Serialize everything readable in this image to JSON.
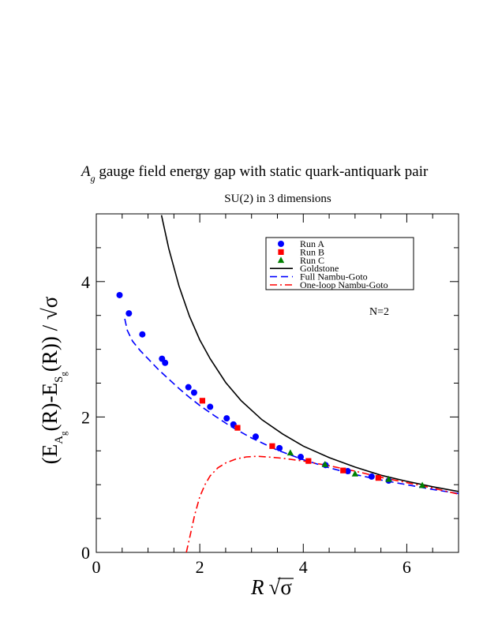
{
  "chart_data": {
    "type": "scatter",
    "title": {
      "prefix": "A",
      "sub": "g",
      "rest": " gauge field energy gap with static quark-antiquark pair"
    },
    "subtitle": "SU(2) in 3 dimensions",
    "xlabel": {
      "main": "R",
      "sqrt": "σ"
    },
    "ylabel": {
      "open": "(E",
      "sub1": "A",
      "sub1s": "g",
      "mid": "(R)-E",
      "sub2": "S",
      "sub2s": "g",
      "end": "(R)) / ",
      "sqrt": "σ"
    },
    "xlim": [
      0,
      7
    ],
    "ylim": [
      0,
      5
    ],
    "x_ticks": [
      "0",
      "2",
      "4",
      "6"
    ],
    "y_ticks": [
      "0",
      "2",
      "4"
    ],
    "annotation": "N=2",
    "legend_position": "top-right",
    "grid": false,
    "series": [
      {
        "name": "Run A",
        "kind": "points",
        "marker": "circle",
        "color": "#0000ff",
        "x": [
          0.45,
          0.63,
          0.89,
          1.27,
          1.33,
          1.78,
          1.89,
          2.2,
          2.52,
          2.65,
          3.08,
          3.54,
          3.95,
          4.43,
          4.86,
          5.32,
          5.65
        ],
        "y": [
          3.8,
          3.53,
          3.22,
          2.86,
          2.8,
          2.44,
          2.36,
          2.15,
          1.98,
          1.89,
          1.71,
          1.54,
          1.41,
          1.29,
          1.2,
          1.12,
          1.06
        ]
      },
      {
        "name": "Run B",
        "kind": "points",
        "marker": "square",
        "color": "#ff0000",
        "x": [
          2.05,
          2.73,
          3.4,
          4.1,
          4.77,
          5.45
        ],
        "y": [
          2.24,
          1.84,
          1.57,
          1.35,
          1.21,
          1.1
        ]
      },
      {
        "name": "Run C",
        "kind": "points",
        "marker": "triangle",
        "color": "#008000",
        "x": [
          3.75,
          4.42,
          5.0,
          5.65,
          6.3
        ],
        "y": [
          1.47,
          1.3,
          1.16,
          1.08,
          0.99
        ]
      },
      {
        "name": "Goldstone",
        "kind": "line",
        "style": "solid",
        "color": "#000000",
        "x": [
          1.26,
          1.4,
          1.6,
          1.8,
          2.0,
          2.2,
          2.5,
          2.8,
          3.2,
          3.6,
          4.0,
          4.5,
          5.0,
          5.5,
          6.0,
          6.5,
          7.0
        ],
        "y": [
          4.98,
          4.49,
          3.93,
          3.49,
          3.14,
          2.86,
          2.51,
          2.24,
          1.96,
          1.75,
          1.57,
          1.4,
          1.26,
          1.14,
          1.05,
          0.97,
          0.9
        ]
      },
      {
        "name": "Full Nambu-Goto",
        "kind": "line",
        "style": "dashed",
        "color": "#0000ff",
        "x": [
          0.55,
          0.6,
          0.7,
          0.85,
          1.0,
          1.2,
          1.4,
          1.6,
          1.8,
          2.0,
          2.3,
          2.6,
          3.0,
          3.5,
          4.0,
          4.5,
          5.0,
          5.5,
          6.0,
          6.5,
          7.0
        ],
        "y": [
          3.45,
          3.28,
          3.12,
          2.98,
          2.86,
          2.7,
          2.56,
          2.42,
          2.29,
          2.17,
          2.01,
          1.86,
          1.69,
          1.51,
          1.37,
          1.25,
          1.15,
          1.07,
          1.0,
          0.93,
          0.87
        ]
      },
      {
        "name": "One-loop Nambu-Goto",
        "kind": "line",
        "style": "dash-dot",
        "color": "#ff0000",
        "x": [
          1.74,
          1.8,
          1.9,
          2.0,
          2.1,
          2.2,
          2.35,
          2.5,
          2.7,
          2.9,
          3.1,
          3.3,
          3.6,
          4.0,
          4.5,
          5.0,
          5.5,
          6.0,
          6.5,
          7.0
        ],
        "y": [
          0.0,
          0.2,
          0.55,
          0.82,
          1.0,
          1.13,
          1.25,
          1.32,
          1.38,
          1.41,
          1.42,
          1.41,
          1.39,
          1.35,
          1.28,
          1.2,
          1.11,
          1.03,
          0.95,
          0.86
        ]
      }
    ]
  }
}
